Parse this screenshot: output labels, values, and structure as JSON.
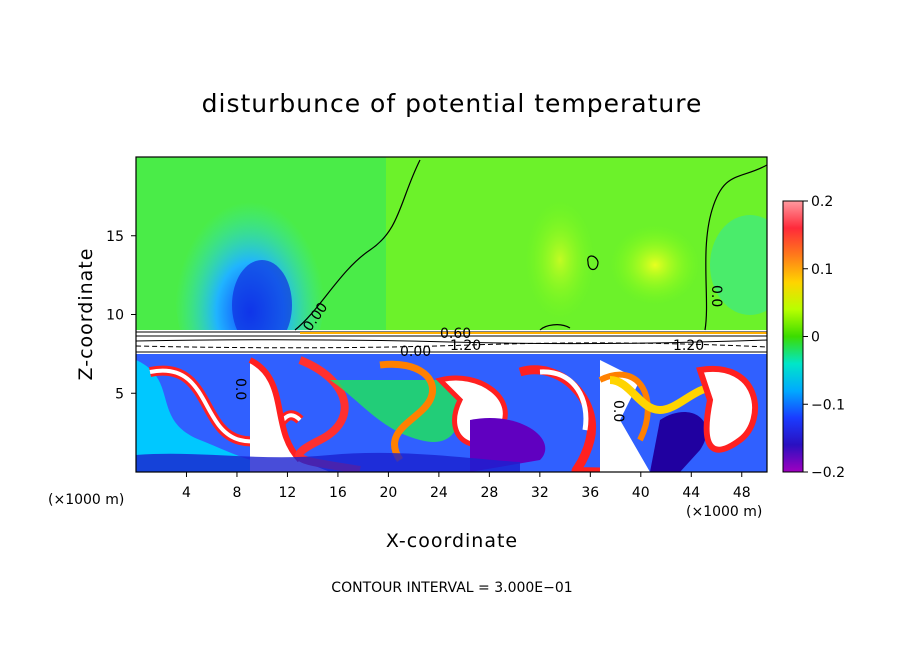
{
  "chart_data": {
    "type": "heatmap",
    "title": "disturbunce of potential temperature",
    "xlabel": "X-coordinate",
    "ylabel": "Z-coordinate",
    "x_unit_label": "(×1000 m)",
    "xlim": [
      0,
      50
    ],
    "ylim": [
      0,
      20
    ],
    "x_ticks": [
      4,
      8,
      12,
      16,
      20,
      24,
      28,
      32,
      36,
      40,
      44,
      48
    ],
    "y_ticks": [
      5,
      10,
      15
    ],
    "colorbar": {
      "range": [
        -0.2,
        0.2
      ],
      "ticks": [
        "0.2",
        "0.1",
        "0",
        "−0.1",
        "−0.2"
      ],
      "tick_values": [
        0.2,
        0.1,
        0,
        -0.1,
        -0.2
      ]
    },
    "contour_labels": [
      "0.00",
      "0.60",
      "1.20",
      "0.00",
      "1.20",
      "0.0",
      "0.0",
      "0.0"
    ],
    "footnote": "CONTOUR INTERVAL = 3.000E−01",
    "colors": {
      "stable_layer": "#7cff14",
      "cold_anomaly": "#3a8cff",
      "warm_anomaly": "#ff2020",
      "zero_band": "#22e000"
    }
  }
}
